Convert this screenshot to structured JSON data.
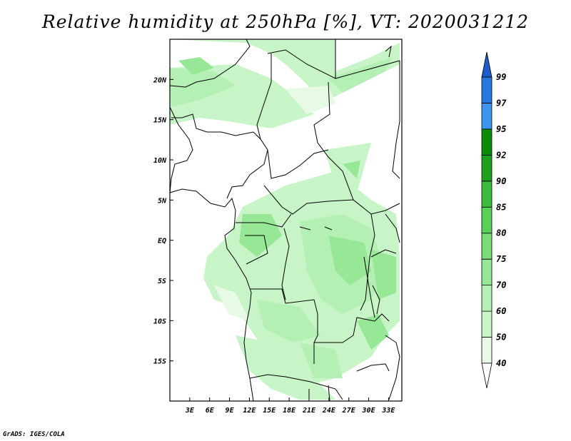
{
  "title": "Relative humidity at 250hPa [%], VT: 2020031212",
  "credit": "GrADS: IGES/COLA",
  "chart_data": {
    "type": "heatmap",
    "title": "Relative humidity at 250hPa [%], VT: 2020031212",
    "variable": "Relative humidity",
    "level": "250hPa",
    "units": "%",
    "valid_time": "2020031212",
    "lon_range": [
      0,
      35
    ],
    "lat_range": [
      -20,
      25
    ],
    "x_ticks": [
      "3E",
      "6E",
      "9E",
      "12E",
      "15E",
      "18E",
      "21E",
      "24E",
      "27E",
      "30E",
      "33E"
    ],
    "y_ticks": [
      "20N",
      "15N",
      "10N",
      "5N",
      "EQ",
      "5S",
      "10S",
      "15S"
    ],
    "colorbar": {
      "levels": [
        "40",
        "50",
        "60",
        "70",
        "75",
        "80",
        "85",
        "90",
        "92",
        "95",
        "97",
        "99"
      ],
      "colors": [
        "#e6fae6",
        "#c8f5c8",
        "#b4f0b4",
        "#96e896",
        "#78dc78",
        "#5ad25a",
        "#3cbc3c",
        "#1ea01e",
        "#0a8c0a",
        "#3c96f0",
        "#2878e1",
        "#1e5ac8"
      ]
    }
  }
}
